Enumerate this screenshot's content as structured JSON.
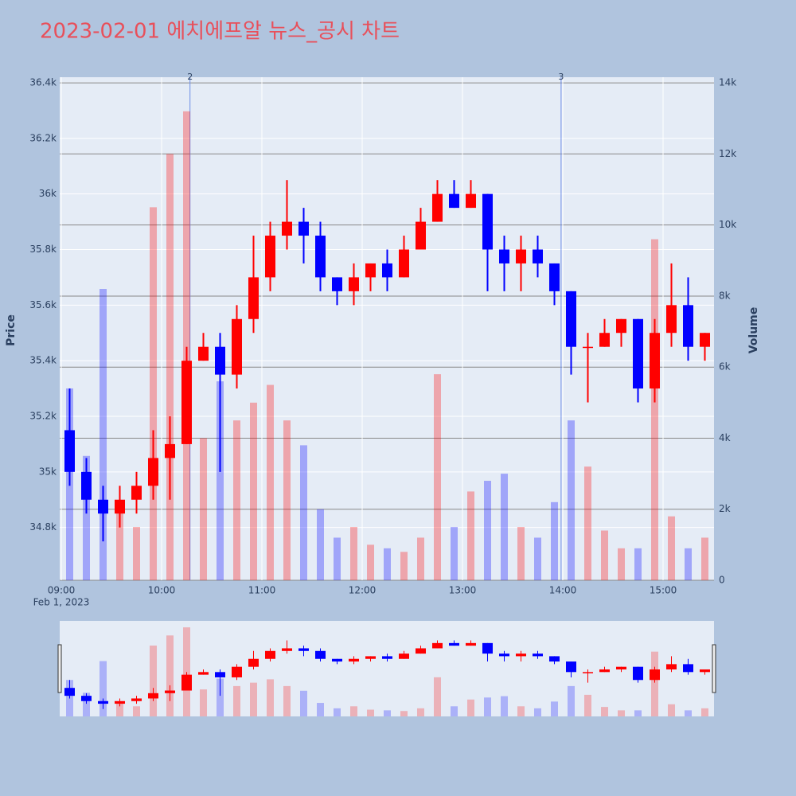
{
  "chart_data": {
    "type": "candlestick",
    "title": "2023-02-01 에치에프알 뉴스_공시 차트",
    "y_label": "Price",
    "y2_label": "Volume",
    "x_date_label": "Feb 1, 2023",
    "increasing_color": "#ff0000",
    "decreasing_color": "#0000ff",
    "x": [
      "09:00",
      "09:10",
      "09:20",
      "09:30",
      "09:40",
      "09:50",
      "10:00",
      "10:10",
      "10:20",
      "10:30",
      "10:40",
      "10:50",
      "11:00",
      "11:10",
      "11:20",
      "11:30",
      "11:40",
      "11:50",
      "12:00",
      "12:10",
      "12:20",
      "12:30",
      "12:40",
      "12:50",
      "13:00",
      "13:10",
      "13:20",
      "13:30",
      "13:40",
      "13:50",
      "14:00",
      "14:10",
      "14:20",
      "14:30",
      "14:40",
      "14:50",
      "15:00",
      "15:10",
      "15:20"
    ],
    "open": [
      35150,
      35000,
      34900,
      34850,
      34900,
      34950,
      35050,
      35100,
      35400,
      35450,
      35350,
      35550,
      35700,
      35850,
      35900,
      35850,
      35700,
      35650,
      35700,
      35750,
      35700,
      35800,
      35900,
      36000,
      35950,
      36000,
      35800,
      35750,
      35800,
      35750,
      35650,
      35450,
      35450,
      35500,
      35550,
      35300,
      35500,
      35600,
      35450
    ],
    "high": [
      35300,
      35050,
      34950,
      34950,
      35000,
      35150,
      35200,
      35450,
      35500,
      35500,
      35600,
      35850,
      35900,
      36050,
      35950,
      35900,
      35700,
      35750,
      35750,
      35800,
      35850,
      35950,
      36050,
      36050,
      36050,
      36000,
      35850,
      35850,
      35850,
      35750,
      35650,
      35500,
      35550,
      35550,
      35550,
      35550,
      35750,
      35700,
      35500
    ],
    "low": [
      34950,
      34850,
      34750,
      34800,
      34850,
      34900,
      34900,
      35100,
      35400,
      35000,
      35300,
      35500,
      35650,
      35800,
      35750,
      35650,
      35600,
      35600,
      35650,
      35650,
      35700,
      35800,
      35900,
      35950,
      35950,
      35650,
      35650,
      35650,
      35700,
      35600,
      35350,
      35250,
      35450,
      35450,
      35250,
      35250,
      35450,
      35400,
      35400
    ],
    "close": [
      35000,
      34900,
      34850,
      34900,
      34950,
      35050,
      35100,
      35400,
      35450,
      35350,
      35550,
      35700,
      35850,
      35900,
      35850,
      35700,
      35650,
      35700,
      35750,
      35700,
      35800,
      35900,
      36000,
      35950,
      36000,
      35800,
      35750,
      35800,
      35750,
      35650,
      35450,
      35450,
      35500,
      35550,
      35300,
      35500,
      35600,
      35450,
      35500
    ],
    "volume": [
      5400,
      3500,
      8200,
      2000,
      1500,
      10500,
      12000,
      13200,
      4000,
      5600,
      4500,
      5000,
      5500,
      4500,
      3800,
      2000,
      1200,
      1500,
      1000,
      900,
      800,
      1200,
      5800,
      1500,
      2500,
      2800,
      3000,
      1500,
      1200,
      2200,
      4500,
      3200,
      1400,
      900,
      900,
      9600,
      1800,
      900,
      1200
    ],
    "annotations": [
      {
        "x": "10:17",
        "text": "2"
      },
      {
        "x": "13:59",
        "text": "3"
      }
    ],
    "xticks": [
      "09:00",
      "10:00",
      "11:00",
      "12:00",
      "13:00",
      "14:00",
      "15:00"
    ],
    "ylim": [
      34610,
      36420
    ],
    "yticks": [
      {
        "value": 34800,
        "label": "34.8k"
      },
      {
        "value": 35000,
        "label": "35k"
      },
      {
        "value": 35200,
        "label": "35.2k"
      },
      {
        "value": 35400,
        "label": "35.4k"
      },
      {
        "value": 35600,
        "label": "35.6k"
      },
      {
        "value": 35800,
        "label": "35.8k"
      },
      {
        "value": 36000,
        "label": "36k"
      },
      {
        "value": 36200,
        "label": "36.2k"
      },
      {
        "value": 36400,
        "label": "36.4k"
      }
    ],
    "y2lim": [
      0,
      14160
    ],
    "y2ticks": [
      0,
      {
        "value": 2000,
        "label": "2k"
      },
      {
        "value": 4000,
        "label": "4k"
      },
      {
        "value": 6000,
        "label": "6k"
      },
      {
        "value": 8000,
        "label": "8k"
      },
      {
        "value": 10000,
        "label": "10k"
      },
      {
        "value": 12000,
        "label": "12k"
      },
      {
        "value": 14000,
        "label": "14k"
      }
    ],
    "grid": true,
    "range_slider": true
  }
}
